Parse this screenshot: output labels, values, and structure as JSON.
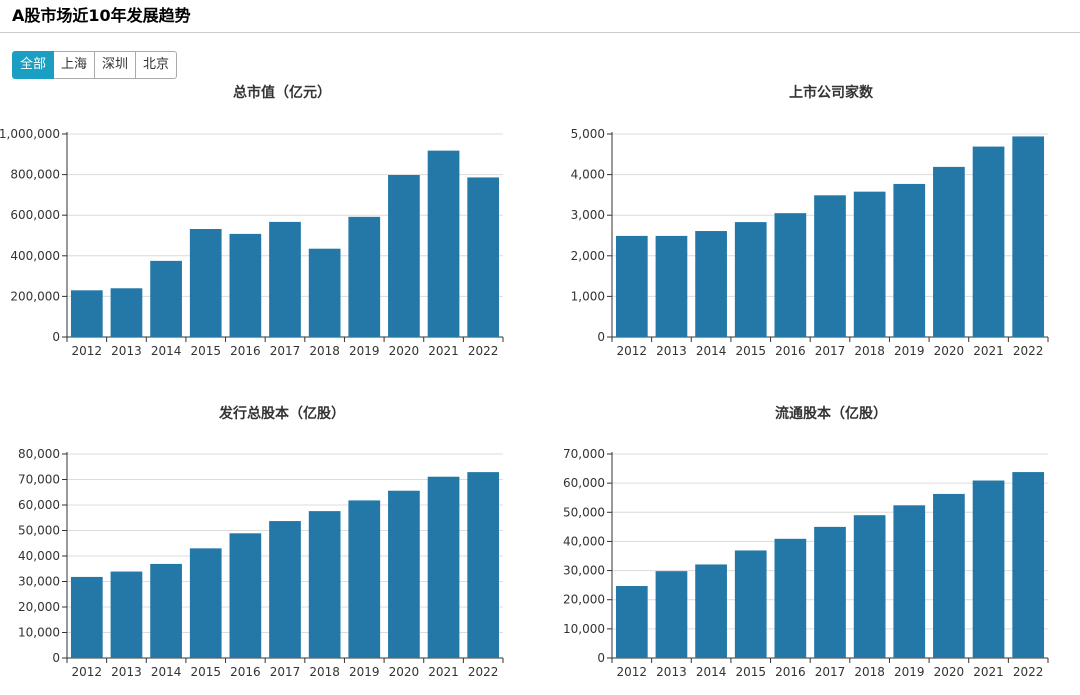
{
  "header": {
    "title": "A股市场近10年发展趋势"
  },
  "tabs": [
    {
      "label": "全部",
      "active": true
    },
    {
      "label": "上海",
      "active": false
    },
    {
      "label": "深圳",
      "active": false
    },
    {
      "label": "北京",
      "active": false
    }
  ],
  "colors": {
    "bar": "#2378a7",
    "tab_active": "#1a9fc2"
  },
  "chart_data": [
    {
      "type": "bar",
      "title": "总市值（亿元）",
      "xlabel": "",
      "ylabel": "",
      "categories": [
        "2012",
        "2013",
        "2014",
        "2015",
        "2016",
        "2017",
        "2018",
        "2019",
        "2020",
        "2021",
        "2022"
      ],
      "values": [
        230000,
        240000,
        375000,
        532000,
        508000,
        567000,
        435000,
        592000,
        798000,
        918000,
        786000
      ],
      "ylim": [
        0,
        1000000
      ],
      "yticks": [
        0,
        200000,
        400000,
        600000,
        800000,
        1000000
      ],
      "ytick_labels": [
        "0",
        "200,000",
        "400,000",
        "600,000",
        "800,000",
        "1,000,000"
      ],
      "grid": true
    },
    {
      "type": "bar",
      "title": "上市公司家数",
      "xlabel": "",
      "ylabel": "",
      "categories": [
        "2012",
        "2013",
        "2014",
        "2015",
        "2016",
        "2017",
        "2018",
        "2019",
        "2020",
        "2021",
        "2022"
      ],
      "values": [
        2490,
        2490,
        2610,
        2830,
        3050,
        3490,
        3580,
        3770,
        4190,
        4690,
        4940
      ],
      "ylim": [
        0,
        5000
      ],
      "yticks": [
        0,
        1000,
        2000,
        3000,
        4000,
        5000
      ],
      "ytick_labels": [
        "0",
        "1,000",
        "2,000",
        "3,000",
        "4,000",
        "5,000"
      ],
      "grid": true
    },
    {
      "type": "bar",
      "title": "发行总股本（亿股）",
      "xlabel": "",
      "ylabel": "",
      "categories": [
        "2012",
        "2013",
        "2014",
        "2015",
        "2016",
        "2017",
        "2018",
        "2019",
        "2020",
        "2021",
        "2022"
      ],
      "values": [
        31800,
        33900,
        36900,
        43000,
        48900,
        53700,
        57600,
        61800,
        65600,
        71100,
        72900
      ],
      "ylim": [
        0,
        80000
      ],
      "yticks": [
        0,
        10000,
        20000,
        30000,
        40000,
        50000,
        60000,
        70000,
        80000
      ],
      "ytick_labels": [
        "0",
        "10,000",
        "20,000",
        "30,000",
        "40,000",
        "50,000",
        "60,000",
        "70,000",
        "80,000"
      ],
      "grid": true
    },
    {
      "type": "bar",
      "title": "流通股本（亿股）",
      "xlabel": "",
      "ylabel": "",
      "categories": [
        "2012",
        "2013",
        "2014",
        "2015",
        "2016",
        "2017",
        "2018",
        "2019",
        "2020",
        "2021",
        "2022"
      ],
      "values": [
        24700,
        29800,
        32100,
        36900,
        40900,
        45000,
        49000,
        52400,
        56300,
        60900,
        63800
      ],
      "ylim": [
        0,
        70000
      ],
      "yticks": [
        0,
        10000,
        20000,
        30000,
        40000,
        50000,
        60000,
        70000
      ],
      "ytick_labels": [
        "0",
        "10,000",
        "20,000",
        "30,000",
        "40,000",
        "50,000",
        "60,000",
        "70,000"
      ],
      "grid": true
    }
  ]
}
